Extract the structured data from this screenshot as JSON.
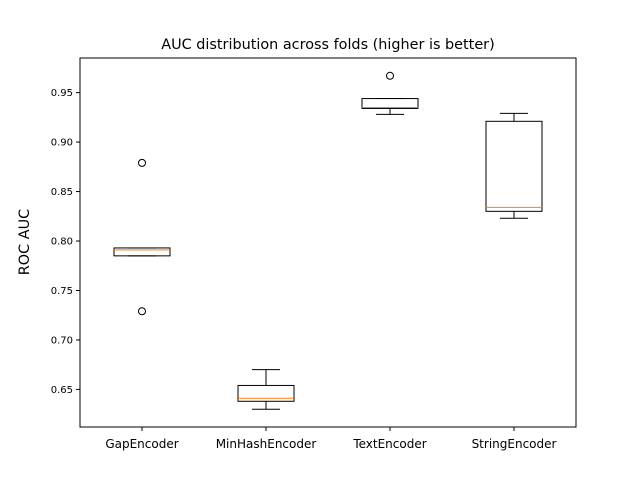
{
  "chart_data": {
    "type": "boxplot",
    "title": "AUC distribution across folds (higher is better)",
    "xlabel": "",
    "ylabel": "ROC AUC",
    "ylim": [
      0.612,
      0.985
    ],
    "yticks": [
      0.65,
      0.7,
      0.75,
      0.8,
      0.85,
      0.9,
      0.95
    ],
    "ytick_labels": [
      "0.65",
      "0.70",
      "0.75",
      "0.80",
      "0.85",
      "0.90",
      "0.95"
    ],
    "grid": false,
    "colors": {
      "box": "#000000",
      "median": "#ff7f0e",
      "flier": "#000000"
    },
    "categories": [
      "GapEncoder",
      "MinHashEncoder",
      "TextEncoder",
      "StringEncoder"
    ],
    "boxes": [
      {
        "category": "GapEncoder",
        "whisker_low": 0.785,
        "q1": 0.785,
        "median": 0.791,
        "q3": 0.793,
        "whisker_high": 0.793,
        "fliers": [
          0.879,
          0.729
        ]
      },
      {
        "category": "MinHashEncoder",
        "whisker_low": 0.63,
        "q1": 0.638,
        "median": 0.641,
        "q3": 0.654,
        "whisker_high": 0.67,
        "fliers": []
      },
      {
        "category": "TextEncoder",
        "whisker_low": 0.928,
        "q1": 0.934,
        "median": 0.935,
        "q3": 0.944,
        "whisker_high": 0.944,
        "fliers": [
          0.967
        ]
      },
      {
        "category": "StringEncoder",
        "whisker_low": 0.823,
        "q1": 0.83,
        "median": 0.834,
        "q3": 0.921,
        "whisker_high": 0.929,
        "fliers": []
      }
    ]
  }
}
